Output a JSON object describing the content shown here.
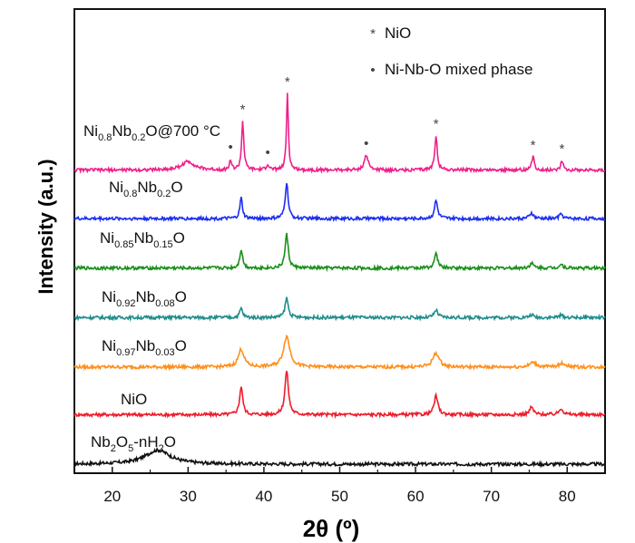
{
  "chart_data": {
    "type": "line",
    "title": "",
    "xlabel": "2θ (º)",
    "ylabel": "Intensity (a.u.)",
    "xlim": [
      15,
      85
    ],
    "xticks": [
      20,
      30,
      40,
      50,
      60,
      70,
      80
    ],
    "yticks": "none",
    "legend": {
      "location": "top-right",
      "entries": [
        {
          "symbol": "*",
          "label": "NiO"
        },
        {
          "symbol": "•",
          "label": "Ni-Nb-O mixed phase"
        }
      ]
    },
    "series": [
      {
        "name": "Nb2O5-nH2O",
        "label_parts": [
          [
            "Nb",
            ""
          ],
          [
            "2",
            "sub"
          ],
          [
            "O",
            ""
          ],
          [
            "5",
            "sub"
          ],
          [
            "-nH",
            ""
          ],
          [
            "2",
            "sub"
          ],
          [
            "O",
            ""
          ]
        ],
        "color": "#111111",
        "offset": 0,
        "baseline": 0,
        "peaks": [
          [
            26,
            1.5,
            4
          ]
        ]
      },
      {
        "name": "NiO",
        "label_parts": [
          [
            "NiO",
            ""
          ]
        ],
        "color": "#ee1c2a",
        "offset": 5.3,
        "baseline": 0,
        "peaks": [
          [
            37.0,
            3.0,
            0.5
          ],
          [
            43.0,
            4.7,
            0.55
          ],
          [
            62.7,
            2.0,
            0.6
          ],
          [
            75.3,
            0.8,
            0.6
          ],
          [
            79.2,
            0.7,
            0.6
          ]
        ]
      },
      {
        "name": "Ni0.97Nb0.03O",
        "label_parts": [
          [
            "Ni",
            ""
          ],
          [
            "0.97",
            "sub"
          ],
          [
            "Nb",
            ""
          ],
          [
            "0.03",
            "sub"
          ],
          [
            "O",
            ""
          ]
        ],
        "color": "#ff8f1c",
        "offset": 10.4,
        "baseline": 0,
        "peaks": [
          [
            37.0,
            1.9,
            0.9
          ],
          [
            43.0,
            3.3,
            1.0
          ],
          [
            62.7,
            1.5,
            1.0
          ],
          [
            75.5,
            0.5,
            1.0
          ],
          [
            79.4,
            0.4,
            1.0
          ]
        ]
      },
      {
        "name": "Ni0.92Nb0.08O",
        "label_parts": [
          [
            "Ni",
            ""
          ],
          [
            "0.92",
            "sub"
          ],
          [
            "Nb",
            ""
          ],
          [
            "0.08",
            "sub"
          ],
          [
            "O",
            ""
          ]
        ],
        "color": "#1f8c8c",
        "offset": 15.7,
        "baseline": 0,
        "peaks": [
          [
            37.0,
            1.0,
            0.45
          ],
          [
            43.0,
            2.1,
            0.5
          ],
          [
            62.7,
            0.8,
            0.55
          ],
          [
            75.3,
            0.3,
            0.6
          ],
          [
            79.2,
            0.25,
            0.6
          ]
        ]
      },
      {
        "name": "Ni0.85Nb0.15O",
        "label_parts": [
          [
            "Ni",
            ""
          ],
          [
            "0.85",
            "sub"
          ],
          [
            "Nb",
            ""
          ],
          [
            "0.15",
            "sub"
          ],
          [
            "O",
            ""
          ]
        ],
        "color": "#1a8f1a",
        "offset": 21.0,
        "baseline": 0,
        "peaks": [
          [
            37.0,
            2.0,
            0.45
          ],
          [
            43.0,
            3.6,
            0.5
          ],
          [
            62.7,
            1.5,
            0.55
          ],
          [
            75.3,
            0.5,
            0.6
          ],
          [
            79.2,
            0.4,
            0.6
          ]
        ]
      },
      {
        "name": "Ni0.8Nb0.2O",
        "label_parts": [
          [
            "Ni",
            ""
          ],
          [
            "0.8",
            "sub"
          ],
          [
            "Nb",
            ""
          ],
          [
            "0.2",
            "sub"
          ],
          [
            "O",
            ""
          ]
        ],
        "color": "#1c2df0",
        "offset": 26.3,
        "baseline": 0,
        "peaks": [
          [
            37.0,
            2.2,
            0.4
          ],
          [
            43.0,
            3.9,
            0.45
          ],
          [
            62.7,
            1.9,
            0.5
          ],
          [
            75.3,
            0.6,
            0.55
          ],
          [
            79.2,
            0.5,
            0.55
          ]
        ]
      },
      {
        "name": "Ni0.8Nb0.2O@700 °C",
        "label_parts": [
          [
            "Ni",
            ""
          ],
          [
            "0.8",
            "sub"
          ],
          [
            "Nb",
            ""
          ],
          [
            "0.2",
            "sub"
          ],
          [
            "O@700 °C",
            ""
          ]
        ],
        "color": "#ef1f8a",
        "offset": 31.5,
        "baseline": 0,
        "peaks": [
          [
            30,
            0.9,
            2.0
          ],
          [
            35.6,
            1.1,
            0.3
          ],
          [
            37.2,
            5.2,
            0.35
          ],
          [
            40.5,
            0.6,
            0.4
          ],
          [
            43.1,
            8.2,
            0.3
          ],
          [
            53.5,
            1.6,
            0.6
          ],
          [
            62.7,
            3.7,
            0.4
          ],
          [
            75.5,
            1.4,
            0.4
          ],
          [
            79.3,
            1.0,
            0.4
          ]
        ]
      }
    ],
    "annotations": [
      {
        "series": "Ni0.8Nb0.2O@700 °C",
        "x": 35.6,
        "symbol": "•"
      },
      {
        "series": "Ni0.8Nb0.2O@700 °C",
        "x": 37.2,
        "symbol": "*"
      },
      {
        "series": "Ni0.8Nb0.2O@700 °C",
        "x": 40.5,
        "symbol": "•"
      },
      {
        "series": "Ni0.8Nb0.2O@700 °C",
        "x": 43.1,
        "symbol": "*"
      },
      {
        "series": "Ni0.8Nb0.2O@700 °C",
        "x": 53.5,
        "symbol": "•"
      },
      {
        "series": "Ni0.8Nb0.2O@700 °C",
        "x": 62.7,
        "symbol": "*"
      },
      {
        "series": "Ni0.8Nb0.2O@700 °C",
        "x": 75.5,
        "symbol": "*"
      },
      {
        "series": "Ni0.8Nb0.2O@700 °C",
        "x": 79.3,
        "symbol": "*"
      }
    ]
  }
}
